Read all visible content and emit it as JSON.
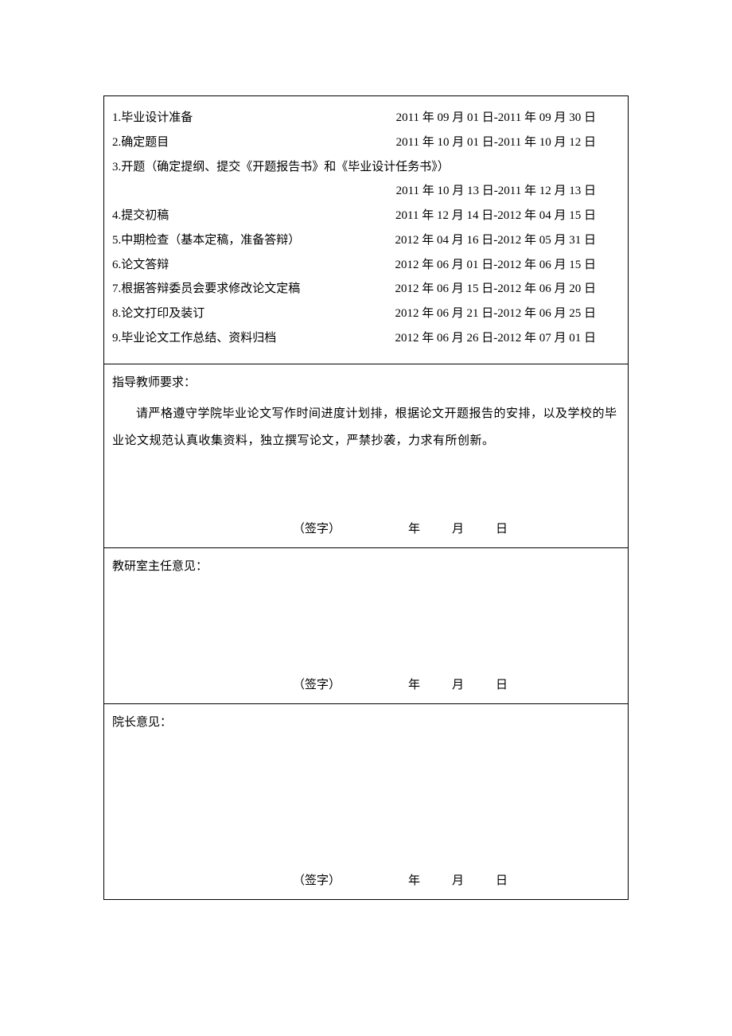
{
  "page": {
    "background_color": "#ffffff",
    "text_color": "#000000",
    "border_color": "#000000",
    "font_family": "SimSun",
    "base_fontsize": 15
  },
  "schedule": {
    "items": [
      {
        "label": "1.毕业设计准备",
        "date": "2011 年 09 月 01 日-2011 年 09 月 30 日"
      },
      {
        "label": "2.确定题目",
        "date": "2011 年 10 月 01 日-2011 年 10 月 12 日"
      }
    ],
    "item3_full": "3.开题（确定提纲、提交《开题报告书》和《毕业设计任务书》）",
    "item3_date": "2011 年 10 月 13 日-2011 年 12 月 13 日",
    "items_rest": [
      {
        "label": "4.提交初稿",
        "date": "2011 年 12 月 14 日-2012 年 04 月 15 日"
      },
      {
        "label": "5.中期检查（基本定稿，准备答辩）",
        "date": "2012 年 04 月 16 日-2012 年 05 月 31 日"
      },
      {
        "label": "6.论文答辩",
        "date": "2012 年 06 月 01 日-2012 年 06 月 15 日"
      },
      {
        "label": "7.根据答辩委员会要求修改论文定稿",
        "date": "2012 年 06 月 15 日-2012 年 06 月 20 日"
      },
      {
        "label": "8.论文打印及装订",
        "date": "2012 年 06 月 21 日-2012 年 06 月 25 日"
      },
      {
        "label": "9.毕业论文工作总结、资料归档",
        "date": "2012 年 06 月 26 日-2012 年 07 月 01 日"
      }
    ]
  },
  "advisor": {
    "header": "指导教师要求：",
    "content": "请严格遵守学院毕业论文写作时间进度计划排，根据论文开题报告的安排，以及学校的毕业论文规范认真收集资料，独立撰写论文，严禁抄袭，力求有所创新。",
    "signature_label": "（签字）",
    "date_year": "年",
    "date_month": "月",
    "date_day": "日"
  },
  "department": {
    "header": "教研室主任意见：",
    "signature_label": "（签字）",
    "date_year": "年",
    "date_month": "月",
    "date_day": "日"
  },
  "dean": {
    "header": "院长意见：",
    "signature_label": "（签字）",
    "date_year": "年",
    "date_month": "月",
    "date_day": "日"
  }
}
